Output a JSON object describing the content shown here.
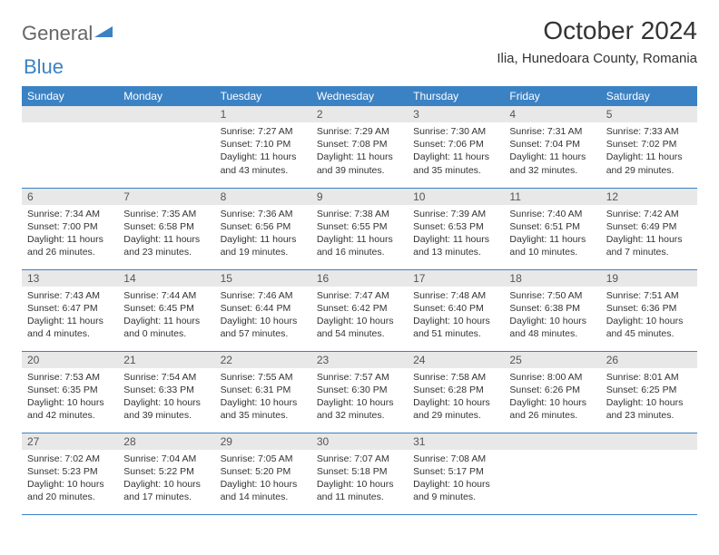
{
  "logo": {
    "word1": "General",
    "word2": "Blue"
  },
  "title": "October 2024",
  "location": "Ilia, Hunedoara County, Romania",
  "colors": {
    "header_bg": "#3b82c4",
    "header_text": "#ffffff",
    "daynum_bg": "#e8e8e8",
    "row_border": "#3b82c4",
    "body_bg": "#ffffff",
    "text": "#333333"
  },
  "day_headers": [
    "Sunday",
    "Monday",
    "Tuesday",
    "Wednesday",
    "Thursday",
    "Friday",
    "Saturday"
  ],
  "weeks": [
    [
      null,
      null,
      {
        "n": "1",
        "sr": "Sunrise: 7:27 AM",
        "ss": "Sunset: 7:10 PM",
        "dl": "Daylight: 11 hours and 43 minutes."
      },
      {
        "n": "2",
        "sr": "Sunrise: 7:29 AM",
        "ss": "Sunset: 7:08 PM",
        "dl": "Daylight: 11 hours and 39 minutes."
      },
      {
        "n": "3",
        "sr": "Sunrise: 7:30 AM",
        "ss": "Sunset: 7:06 PM",
        "dl": "Daylight: 11 hours and 35 minutes."
      },
      {
        "n": "4",
        "sr": "Sunrise: 7:31 AM",
        "ss": "Sunset: 7:04 PM",
        "dl": "Daylight: 11 hours and 32 minutes."
      },
      {
        "n": "5",
        "sr": "Sunrise: 7:33 AM",
        "ss": "Sunset: 7:02 PM",
        "dl": "Daylight: 11 hours and 29 minutes."
      }
    ],
    [
      {
        "n": "6",
        "sr": "Sunrise: 7:34 AM",
        "ss": "Sunset: 7:00 PM",
        "dl": "Daylight: 11 hours and 26 minutes."
      },
      {
        "n": "7",
        "sr": "Sunrise: 7:35 AM",
        "ss": "Sunset: 6:58 PM",
        "dl": "Daylight: 11 hours and 23 minutes."
      },
      {
        "n": "8",
        "sr": "Sunrise: 7:36 AM",
        "ss": "Sunset: 6:56 PM",
        "dl": "Daylight: 11 hours and 19 minutes."
      },
      {
        "n": "9",
        "sr": "Sunrise: 7:38 AM",
        "ss": "Sunset: 6:55 PM",
        "dl": "Daylight: 11 hours and 16 minutes."
      },
      {
        "n": "10",
        "sr": "Sunrise: 7:39 AM",
        "ss": "Sunset: 6:53 PM",
        "dl": "Daylight: 11 hours and 13 minutes."
      },
      {
        "n": "11",
        "sr": "Sunrise: 7:40 AM",
        "ss": "Sunset: 6:51 PM",
        "dl": "Daylight: 11 hours and 10 minutes."
      },
      {
        "n": "12",
        "sr": "Sunrise: 7:42 AM",
        "ss": "Sunset: 6:49 PM",
        "dl": "Daylight: 11 hours and 7 minutes."
      }
    ],
    [
      {
        "n": "13",
        "sr": "Sunrise: 7:43 AM",
        "ss": "Sunset: 6:47 PM",
        "dl": "Daylight: 11 hours and 4 minutes."
      },
      {
        "n": "14",
        "sr": "Sunrise: 7:44 AM",
        "ss": "Sunset: 6:45 PM",
        "dl": "Daylight: 11 hours and 0 minutes."
      },
      {
        "n": "15",
        "sr": "Sunrise: 7:46 AM",
        "ss": "Sunset: 6:44 PM",
        "dl": "Daylight: 10 hours and 57 minutes."
      },
      {
        "n": "16",
        "sr": "Sunrise: 7:47 AM",
        "ss": "Sunset: 6:42 PM",
        "dl": "Daylight: 10 hours and 54 minutes."
      },
      {
        "n": "17",
        "sr": "Sunrise: 7:48 AM",
        "ss": "Sunset: 6:40 PM",
        "dl": "Daylight: 10 hours and 51 minutes."
      },
      {
        "n": "18",
        "sr": "Sunrise: 7:50 AM",
        "ss": "Sunset: 6:38 PM",
        "dl": "Daylight: 10 hours and 48 minutes."
      },
      {
        "n": "19",
        "sr": "Sunrise: 7:51 AM",
        "ss": "Sunset: 6:36 PM",
        "dl": "Daylight: 10 hours and 45 minutes."
      }
    ],
    [
      {
        "n": "20",
        "sr": "Sunrise: 7:53 AM",
        "ss": "Sunset: 6:35 PM",
        "dl": "Daylight: 10 hours and 42 minutes."
      },
      {
        "n": "21",
        "sr": "Sunrise: 7:54 AM",
        "ss": "Sunset: 6:33 PM",
        "dl": "Daylight: 10 hours and 39 minutes."
      },
      {
        "n": "22",
        "sr": "Sunrise: 7:55 AM",
        "ss": "Sunset: 6:31 PM",
        "dl": "Daylight: 10 hours and 35 minutes."
      },
      {
        "n": "23",
        "sr": "Sunrise: 7:57 AM",
        "ss": "Sunset: 6:30 PM",
        "dl": "Daylight: 10 hours and 32 minutes."
      },
      {
        "n": "24",
        "sr": "Sunrise: 7:58 AM",
        "ss": "Sunset: 6:28 PM",
        "dl": "Daylight: 10 hours and 29 minutes."
      },
      {
        "n": "25",
        "sr": "Sunrise: 8:00 AM",
        "ss": "Sunset: 6:26 PM",
        "dl": "Daylight: 10 hours and 26 minutes."
      },
      {
        "n": "26",
        "sr": "Sunrise: 8:01 AM",
        "ss": "Sunset: 6:25 PM",
        "dl": "Daylight: 10 hours and 23 minutes."
      }
    ],
    [
      {
        "n": "27",
        "sr": "Sunrise: 7:02 AM",
        "ss": "Sunset: 5:23 PM",
        "dl": "Daylight: 10 hours and 20 minutes."
      },
      {
        "n": "28",
        "sr": "Sunrise: 7:04 AM",
        "ss": "Sunset: 5:22 PM",
        "dl": "Daylight: 10 hours and 17 minutes."
      },
      {
        "n": "29",
        "sr": "Sunrise: 7:05 AM",
        "ss": "Sunset: 5:20 PM",
        "dl": "Daylight: 10 hours and 14 minutes."
      },
      {
        "n": "30",
        "sr": "Sunrise: 7:07 AM",
        "ss": "Sunset: 5:18 PM",
        "dl": "Daylight: 10 hours and 11 minutes."
      },
      {
        "n": "31",
        "sr": "Sunrise: 7:08 AM",
        "ss": "Sunset: 5:17 PM",
        "dl": "Daylight: 10 hours and 9 minutes."
      },
      null,
      null
    ]
  ]
}
